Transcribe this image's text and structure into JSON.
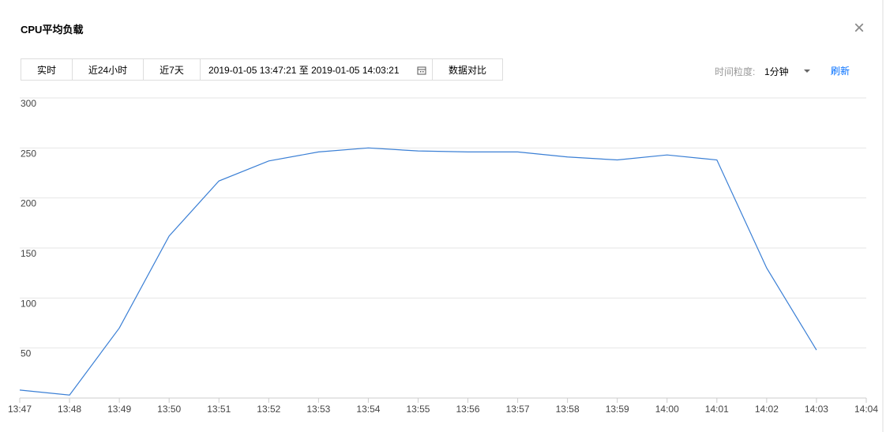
{
  "header": {
    "title": "CPU平均负载",
    "close": "×"
  },
  "toolbar": {
    "buttons": [
      "实时",
      "近24小时",
      "近7天"
    ],
    "range": "2019-01-05 13:47:21 至 2019-01-05 14:03:21",
    "compare": "数据对比",
    "granularity_label": "时间粒度:",
    "granularity": "1分钟",
    "refresh": "刷新"
  },
  "chart_data": {
    "type": "line",
    "categories": [
      "13:47",
      "13:48",
      "13:49",
      "13:50",
      "13:51",
      "13:52",
      "13:53",
      "13:54",
      "13:55",
      "13:56",
      "13:57",
      "13:58",
      "13:59",
      "14:00",
      "14:01",
      "14:02",
      "14:03",
      "14:04"
    ],
    "series": [
      {
        "color": "#3a7fd5",
        "values": [
          8,
          3,
          70,
          162,
          217,
          237,
          246,
          250,
          247,
          246,
          246,
          241,
          238,
          243,
          238,
          130,
          48,
          null
        ]
      }
    ],
    "ylim": [
      0,
      300
    ],
    "yticks": [
      50,
      100,
      150,
      200,
      250,
      300
    ],
    "grid": true
  }
}
